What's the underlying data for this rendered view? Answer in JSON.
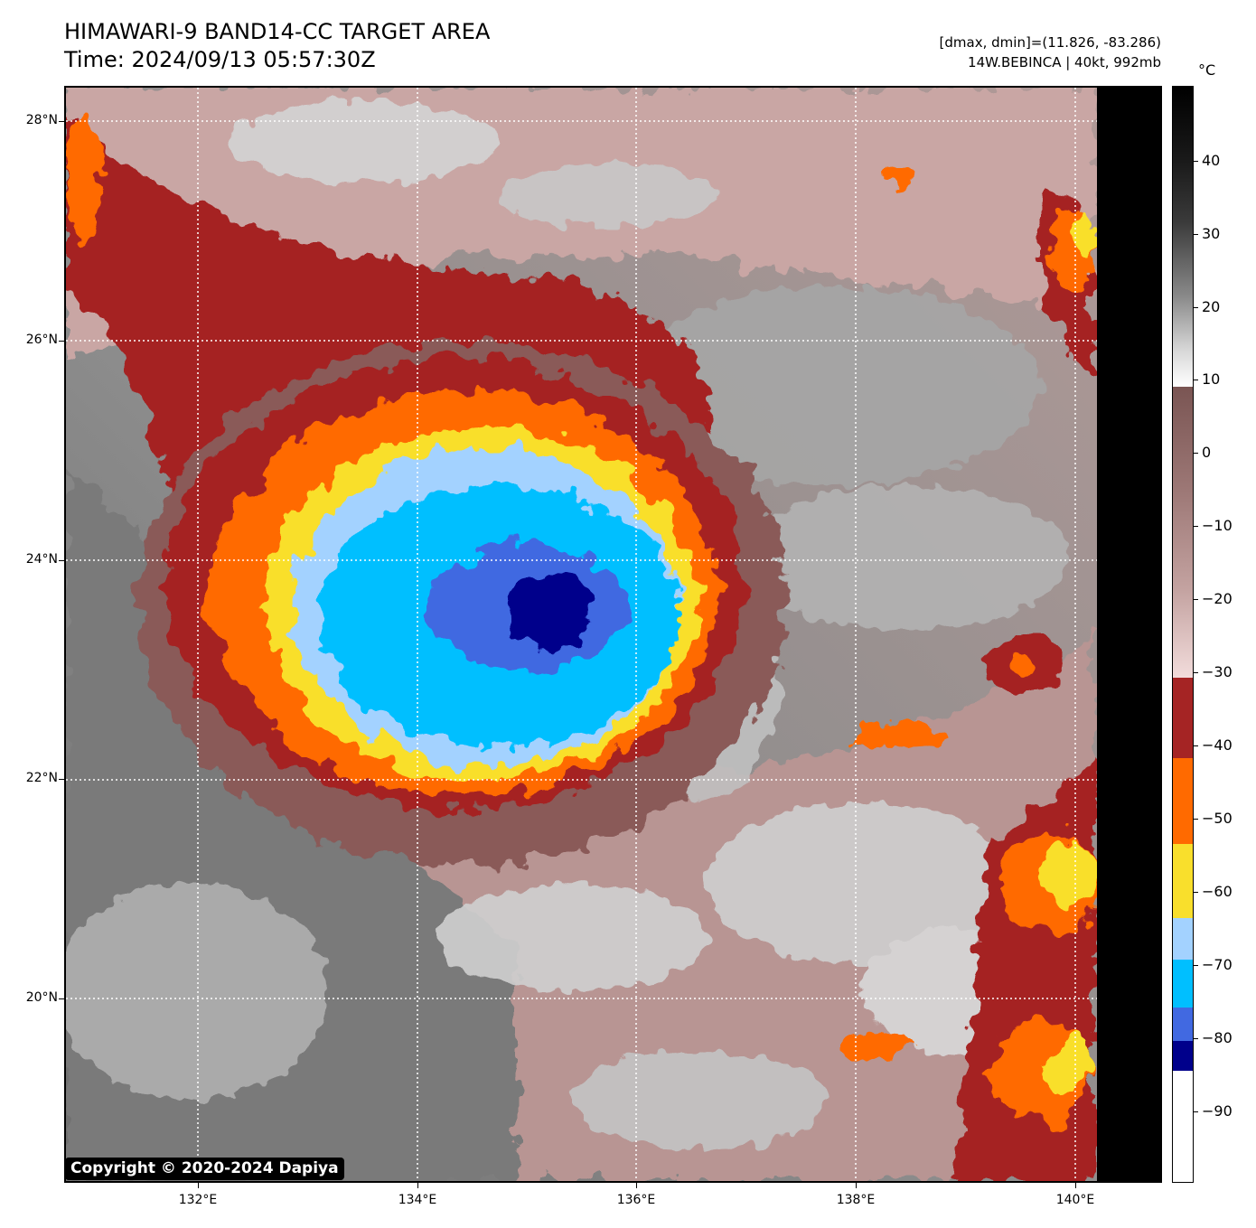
{
  "title": {
    "line1": "HIMAWARI-9 BAND14-CC TARGET AREA",
    "line2": "Time: 2024/09/13 05:57:30Z"
  },
  "info": {
    "line1": "[dmax, dmin]=(11.826, -83.286)",
    "line2": "14W.BEBINCA | 40kt, 992mb"
  },
  "map": {
    "lat_labels": [
      "28°N",
      "26°N",
      "24°N",
      "22°N",
      "20°N"
    ],
    "lon_labels": [
      "132°E",
      "134°E",
      "136°E",
      "138°E",
      "140°E"
    ],
    "copyright": "Copyright © 2020-2024 Dapiya"
  },
  "colorbar": {
    "unit": "°C",
    "labels": [
      "40",
      "30",
      "20",
      "10",
      "0",
      "−10",
      "−20",
      "−30",
      "−40",
      "−50",
      "−60",
      "−70",
      "−80",
      "−90"
    ],
    "colors": {
      "lt_-80": "#00008b",
      "-80_-75": "#4169e1",
      "-75_-65": "#00bfff",
      "-65_-60": "#a3d2ff",
      "-60_-50": "#f9df2c",
      "-50_-40": "#ff6a00",
      "-40_-30": "#a52424",
      "gray_scale_warm": "#808080",
      "cloud_free": "#000000"
    }
  }
}
